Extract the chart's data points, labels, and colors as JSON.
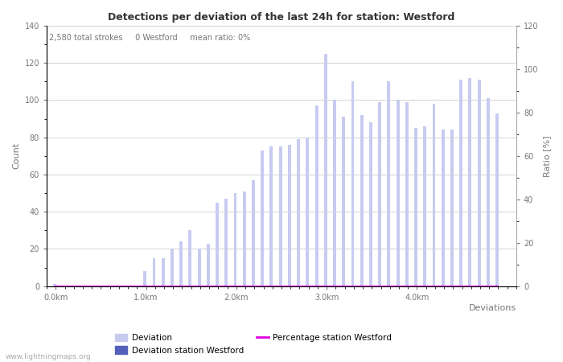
{
  "title": "Detections per deviation of the last 24h for station: Westford",
  "subtitle": "2,580 total strokes     0 Westford     mean ratio: 0%",
  "xlabel": "Deviations",
  "ylabel_left": "Count",
  "ylabel_right": "Ratio [%]",
  "ylim_left": [
    0,
    140
  ],
  "ylim_right": [
    0,
    120
  ],
  "x_tick_labels": [
    "0.0km",
    "1.0km",
    "2.0km",
    "3.0km",
    "4.0km"
  ],
  "x_tick_positions": [
    0,
    10,
    20,
    30,
    40
  ],
  "background_color": "#ffffff",
  "bar_color_light": "#c8cbf0",
  "bar_color_dark": "#5560bb",
  "line_color": "#dd00dd",
  "grid_color": "#cccccc",
  "text_color": "#777777",
  "title_color": "#333333",
  "watermark": "www.lightningmaps.org",
  "legend_labels": [
    "Deviation",
    "Deviation station Westford",
    "Percentage station Westford"
  ],
  "bar_values": [
    1,
    0,
    0,
    0,
    0,
    0,
    0,
    0,
    0,
    0,
    8,
    15,
    15,
    20,
    24,
    30,
    20,
    23,
    45,
    47,
    50,
    51,
    57,
    73,
    75,
    75,
    76,
    79,
    80,
    97,
    125,
    100,
    91,
    110,
    92,
    88,
    99,
    110,
    100,
    99,
    85,
    86,
    98,
    84,
    84,
    111,
    112,
    111,
    101,
    93
  ],
  "station_values": [
    0,
    0,
    0,
    0,
    0,
    0,
    0,
    0,
    0,
    0,
    0,
    0,
    0,
    0,
    0,
    0,
    0,
    0,
    0,
    0,
    0,
    0,
    0,
    0,
    0,
    0,
    0,
    0,
    0,
    0,
    0,
    0,
    0,
    0,
    0,
    0,
    0,
    0,
    0,
    0,
    0,
    0,
    0,
    0,
    0,
    0,
    0,
    0,
    0,
    0
  ]
}
